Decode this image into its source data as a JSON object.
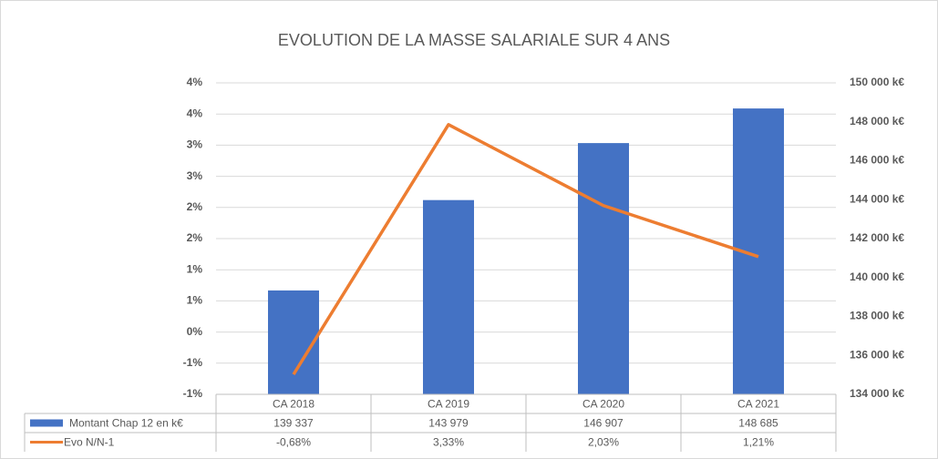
{
  "chart_data": {
    "type": "bar-line",
    "title": "EVOLUTION DE LA MASSE SALARIALE SUR 4 ANS",
    "categories": [
      "CA 2018",
      "CA 2019",
      "CA 2020",
      "CA 2021"
    ],
    "series": [
      {
        "name": "Montant Chap 12 en k€",
        "color": "#4472c4",
        "type": "bar",
        "axis": "y2",
        "values": [
          139337,
          143979,
          146907,
          148685
        ],
        "value_labels": [
          "139 337",
          "143 979",
          "146 907",
          "148 685"
        ]
      },
      {
        "name": "Evo N/N-1",
        "color": "#ed7d31",
        "type": "line",
        "axis": "y",
        "values": [
          -0.68,
          3.33,
          2.03,
          1.21
        ],
        "value_labels": [
          "-0,68%",
          "3,33%",
          "2,03%",
          "1,21%"
        ]
      }
    ],
    "ylim": [
      -1,
      4
    ],
    "yticks": [
      {
        "value": -1,
        "label": "-1%"
      },
      {
        "value": -0.5,
        "label": "-1%"
      },
      {
        "value": 0,
        "label": "0%"
      },
      {
        "value": 0.5,
        "label": "1%"
      },
      {
        "value": 1,
        "label": "1%"
      },
      {
        "value": 1.5,
        "label": "2%"
      },
      {
        "value": 2,
        "label": "2%"
      },
      {
        "value": 2.5,
        "label": "3%"
      },
      {
        "value": 3,
        "label": "3%"
      },
      {
        "value": 3.5,
        "label": "4%"
      },
      {
        "value": 4,
        "label": "4%"
      }
    ],
    "y2lim": [
      134000,
      150000
    ],
    "y2ticks": [
      {
        "value": 134000,
        "label": "134 000  k€"
      },
      {
        "value": 136000,
        "label": "136 000  k€"
      },
      {
        "value": 138000,
        "label": "138 000  k€"
      },
      {
        "value": 140000,
        "label": "140 000  k€"
      },
      {
        "value": 142000,
        "label": "142 000  k€"
      },
      {
        "value": 144000,
        "label": "144 000  k€"
      },
      {
        "value": 146000,
        "label": "146 000  k€"
      },
      {
        "value": 148000,
        "label": "148 000  k€"
      },
      {
        "value": 150000,
        "label": "150 000  k€"
      }
    ],
    "grid": true
  }
}
